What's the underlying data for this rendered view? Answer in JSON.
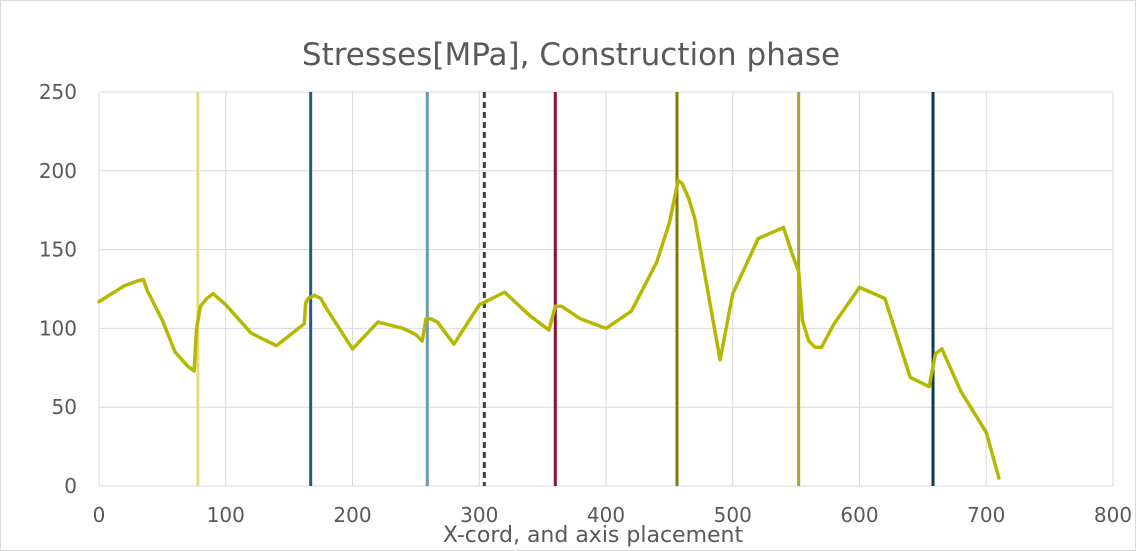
{
  "chart_data": {
    "type": "line",
    "title": "Stresses[MPa], Construction phase",
    "xlabel": "X-cord, and axis placement",
    "ylabel": "",
    "xlim": [
      0,
      800
    ],
    "ylim": [
      0,
      250
    ],
    "x_ticks": [
      "0",
      "100",
      "200",
      "300",
      "400",
      "500",
      "600",
      "700",
      "800"
    ],
    "y_ticks": [
      "0",
      "50",
      "100",
      "150",
      "200",
      "250"
    ],
    "grid": true,
    "legend": "none",
    "series": [
      {
        "color": "#b5b800",
        "x": [
          0,
          10,
          20,
          30,
          35,
          38,
          40,
          50,
          60,
          70,
          75,
          77,
          80,
          85,
          90,
          100,
          120,
          140,
          162,
          163,
          165,
          170,
          175,
          180,
          200,
          220,
          240,
          250,
          255,
          258,
          262,
          267,
          280,
          300,
          320,
          340,
          355,
          360,
          365,
          380,
          400,
          420,
          440,
          450,
          457,
          460,
          465,
          470,
          490,
          500,
          520,
          540,
          547,
          552,
          555,
          560,
          565,
          570,
          580,
          600,
          620,
          640,
          650,
          655,
          660,
          665,
          670,
          680,
          690,
          700,
          710
        ],
        "values": [
          117,
          122,
          127,
          130,
          131,
          124,
          121,
          105,
          85,
          76,
          73,
          100,
          114,
          119,
          122,
          115,
          97,
          89,
          103,
          116,
          119,
          121,
          119,
          112,
          87,
          104,
          100,
          96,
          92,
          106,
          106,
          104,
          90,
          115,
          123,
          108,
          99,
          114,
          114,
          106,
          100,
          111,
          142,
          167,
          194,
          192,
          183,
          170,
          80,
          122,
          157,
          164,
          147,
          136,
          105,
          92,
          88,
          88,
          103,
          126,
          119,
          69,
          65,
          63,
          84,
          87,
          78,
          60,
          47,
          34,
          5
        ]
      }
    ],
    "vertical_lines": [
      {
        "x": 78,
        "color": "#e3db7e",
        "style": "solid"
      },
      {
        "x": 167,
        "color": "#1f5e84",
        "style": "solid"
      },
      {
        "x": 259,
        "color": "#6a9ab4",
        "style": "solid"
      },
      {
        "x": 304,
        "color": "#404040",
        "style": "dashed"
      },
      {
        "x": 360,
        "color": "#8b1133",
        "style": "solid"
      },
      {
        "x": 456,
        "color": "#7d7b00",
        "style": "solid"
      },
      {
        "x": 552,
        "color": "#a8a32a",
        "style": "solid"
      },
      {
        "x": 658,
        "color": "#0d3a52",
        "style": "solid"
      }
    ]
  }
}
